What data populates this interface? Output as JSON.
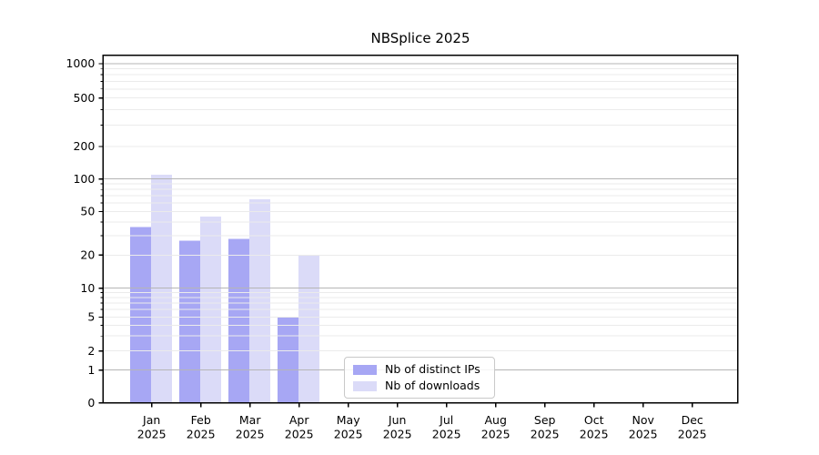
{
  "chart_data": {
    "type": "bar",
    "title": "NBSplice 2025",
    "categories": [
      "Jan 2025",
      "Feb 2025",
      "Mar 2025",
      "Apr 2025",
      "May 2025",
      "Jun 2025",
      "Jul 2025",
      "Aug 2025",
      "Sep 2025",
      "Oct 2025",
      "Nov 2025",
      "Dec 2025"
    ],
    "series": [
      {
        "name": "Nb of distinct IPs",
        "color": "#a7a7f4",
        "values": [
          36,
          27,
          28,
          5,
          null,
          null,
          null,
          null,
          null,
          null,
          null,
          null
        ]
      },
      {
        "name": "Nb of downloads",
        "color": "#dbdbf8",
        "values": [
          110,
          45,
          65,
          20,
          null,
          null,
          null,
          null,
          null,
          null,
          null,
          null
        ]
      }
    ],
    "xlabel": "",
    "ylabel": "",
    "y_scale": "symlog",
    "y_tick_labels": [
      "0",
      "1",
      "2",
      "5",
      "10",
      "20",
      "50",
      "100",
      "200",
      "500",
      "1000"
    ],
    "y_ticks": [
      0,
      1,
      2,
      5,
      10,
      20,
      50,
      100,
      200,
      500,
      1000
    ],
    "ylim": [
      0,
      1200
    ],
    "grid": "both",
    "legend_position": "lower center",
    "colors": {
      "major_grid": "#b5b5b5",
      "minor_grid": "#ebebeb",
      "axis": "#000000",
      "text": "#000000"
    }
  }
}
